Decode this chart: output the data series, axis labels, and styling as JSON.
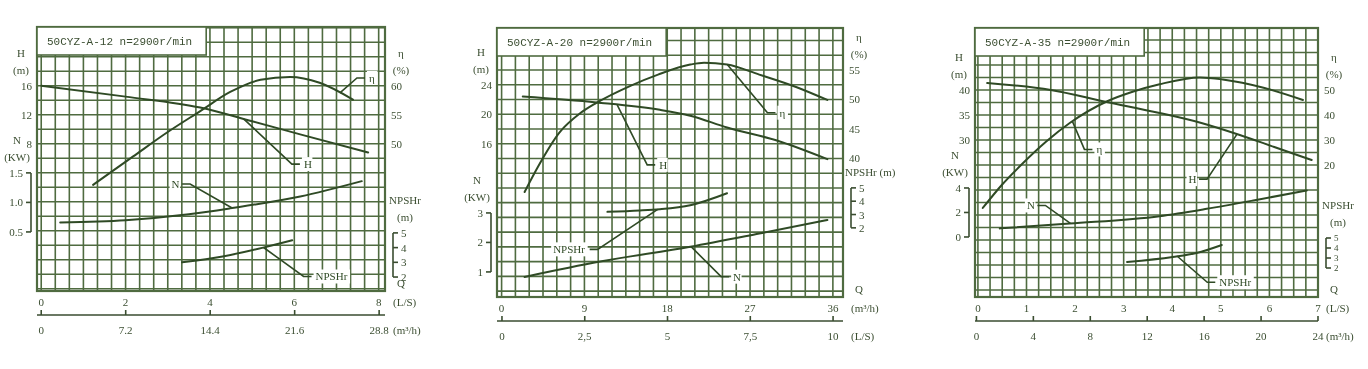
{
  "chart_data": [
    {
      "type": "line",
      "title": "50CYZ-A-12 n=2900r/min",
      "xlabel": "Q (L/S)",
      "x2label": "(m³/h)",
      "ylabel": "H (m)",
      "y2label": "η (%)",
      "grid": true,
      "xlim": [
        -0.1,
        8.15
      ],
      "xticks": [
        0,
        2,
        4,
        6,
        8
      ],
      "x2lim": [
        -0.36,
        29.3
      ],
      "x2ticks": [
        0,
        7.2,
        14.4,
        21.6,
        28.8
      ],
      "ylim": [
        -12.3,
        24.1
      ],
      "yticks": [
        16,
        12,
        8
      ],
      "y2lim": [
        24.6,
        70.1
      ],
      "y2ticks": [
        60,
        55,
        50
      ],
      "series": [
        {
          "name": "H",
          "color": "#2f4a25",
          "x": [
            0,
            2,
            3.77,
            5,
            6.14,
            7.75
          ],
          "values": [
            16,
            14.5,
            13,
            11.1,
            9.3,
            6.8
          ]
        },
        {
          "name": "η",
          "axis": "y2",
          "color": "#2f4a25",
          "x": [
            1.23,
            2.18,
            3,
            3.77,
            4.48,
            5.2,
            5.9,
            6.6,
            7.39
          ],
          "values": [
            42.9,
            47.8,
            52,
            55.6,
            58.9,
            61,
            61.5,
            60.5,
            57.6
          ]
        }
      ]
    },
    {
      "type": "line",
      "ylabel": "N (KW)",
      "y2label": "NPSHr (m)",
      "tick_labels": "y",
      "xlim": [
        -0.1,
        8.15
      ],
      "ylim": [
        -0.5,
        3.97
      ],
      "yticks": [
        1.5,
        {
          "value": 1,
          "label": "1.0"
        },
        0.5
      ],
      "y2lim": [
        1.05,
        19.0
      ],
      "y2ticks": [
        5,
        4,
        3,
        2
      ],
      "series": [
        {
          "name": "N",
          "color": "#2f4a25",
          "x": [
            0.45,
            2,
            3.5,
            4.48,
            6.14,
            7.6
          ],
          "values": [
            0.66,
            0.7,
            0.8,
            0.9,
            1.1,
            1.36
          ]
        },
        {
          "name": "NPSHr",
          "axis": "y2",
          "color": "#2f4a25",
          "x": [
            3.34,
            4.3,
            5.26,
            5.95
          ],
          "values": [
            3,
            3.4,
            4,
            4.5
          ]
        }
      ]
    },
    {
      "type": "line",
      "title": "50CYZ-A-20 n=2900r/min",
      "xlabel": "Q (m³/h)",
      "x2label": "(L/S)",
      "ylabel": "H (m)",
      "y2label": "η (%)",
      "grid": true,
      "xlim": [
        -0.5,
        37.1
      ],
      "xticks": [
        0,
        9,
        18,
        27,
        36
      ],
      "x2lim": [
        -0.15,
        10.3
      ],
      "x2ticks": [
        0,
        {
          "value": 2.5,
          "label": "2,5"
        },
        5,
        {
          "value": 7.5,
          "label": "7,5"
        },
        10
      ],
      "ylim": [
        -4.8,
        31.7
      ],
      "yticks": [
        24,
        20,
        16
      ],
      "y2lim": [
        16.5,
        62.1
      ],
      "y2ticks": [
        55,
        50,
        45,
        40
      ],
      "series": [
        {
          "name": "H",
          "color": "#2f4a25",
          "x": [
            2.3,
            10.3,
            17.2,
            20.5,
            24.5,
            30,
            35.4
          ],
          "values": [
            22.4,
            21.6,
            20.6,
            19.8,
            18.2,
            16.4,
            13.9
          ]
        },
        {
          "name": "η",
          "axis": "y2",
          "color": "#2f4a25",
          "x": [
            2.5,
            4,
            6.3,
            8.5,
            10.3,
            14,
            17,
            20.5,
            22,
            24.5,
            28,
            32,
            35.4
          ],
          "values": [
            34.3,
            38.7,
            44.4,
            47.6,
            49.4,
            52.3,
            54.2,
            55.9,
            56.2,
            55.9,
            54.2,
            52.1,
            49.9
          ]
        }
      ]
    },
    {
      "type": "line",
      "ylabel": "N (KW)",
      "y2label": "NPSHr (m)",
      "tick_labels": "y",
      "xlim": [
        -0.5,
        37.1
      ],
      "ylim": [
        0.15,
        9.27
      ],
      "yticks": [
        3,
        2,
        1
      ],
      "y2lim": [
        -3.19,
        17
      ],
      "y2ticks": [
        5,
        4,
        3,
        2
      ],
      "series": [
        {
          "name": "N",
          "color": "#2f4a25",
          "x": [
            2.5,
            10.7,
            20.5,
            28,
            35.4
          ],
          "values": [
            0.83,
            1.35,
            1.85,
            2.3,
            2.76
          ]
        },
        {
          "name": "NPSHr",
          "axis": "y2",
          "color": "#2f4a25",
          "x": [
            11.5,
            15,
            17.2,
            20.5,
            24.5
          ],
          "values": [
            3.2,
            3.3,
            3.4,
            3.7,
            4.6
          ]
        }
      ]
    },
    {
      "type": "line",
      "title": "50CYZ-A-35 n=2900r/min",
      "xlabel": "Q (L/S)",
      "x2label": "(m³/h)",
      "ylabel": "H (m)",
      "y2label": "η (%)",
      "grid": true,
      "xlim": [
        -0.06,
        7
      ],
      "xticks": [
        0,
        1,
        2,
        3,
        4,
        5,
        6,
        7
      ],
      "x2lim": [
        -0.1,
        24
      ],
      "x2ticks": [
        0,
        4,
        8,
        12,
        16,
        20,
        24
      ],
      "ylim": [
        -1.4,
        52.4
      ],
      "yticks": [
        40,
        35,
        30
      ],
      "y2lim": [
        -32.8,
        74.8
      ],
      "y2ticks": [
        50,
        40,
        30,
        20
      ],
      "series": [
        {
          "name": "H",
          "color": "#2f4a25",
          "x": [
            0.19,
            1.5,
            2.65,
            3.74,
            4.6,
            5.39,
            6.1,
            6.87
          ],
          "values": [
            41.4,
            40,
            37.6,
            35.4,
            33.4,
            31,
            28.6,
            26
          ]
        },
        {
          "name": "η",
          "axis": "y2",
          "color": "#2f4a25",
          "x": [
            0.1,
            0.5,
            0.93,
            1.4,
            1.89,
            2.65,
            3.2,
            3.74,
            4.57,
            5.04,
            5.9,
            6.69
          ],
          "values": [
            2.8,
            12.2,
            20.8,
            29.3,
            36.8,
            45.4,
            49.4,
            52.3,
            55,
            54.2,
            50.8,
            46
          ]
        }
      ]
    },
    {
      "type": "line",
      "ylabel": "N (KW)",
      "y2label": "NPSHr (m)",
      "tick_labels": "y",
      "xlim": [
        -0.06,
        7
      ],
      "ylim": [
        -4.9,
        17.06
      ],
      "yticks": [
        4,
        2,
        0
      ],
      "y2lim": [
        -0.9,
        26
      ],
      "y2ticks": [
        5,
        4,
        3,
        2
      ],
      "series": [
        {
          "name": "N",
          "color": "#2f4a25",
          "x": [
            0.45,
            1.89,
            3.74,
            4.71,
            5.7,
            6.77
          ],
          "values": [
            0.7,
            1.1,
            1.7,
            2.3,
            3,
            3.8
          ]
        },
        {
          "name": "NPSHr",
          "axis": "y2",
          "color": "#2f4a25",
          "x": [
            3.07,
            4.01,
            4.5,
            5.02
          ],
          "values": [
            2.6,
            3.1,
            3.5,
            4.3
          ]
        }
      ]
    }
  ]
}
